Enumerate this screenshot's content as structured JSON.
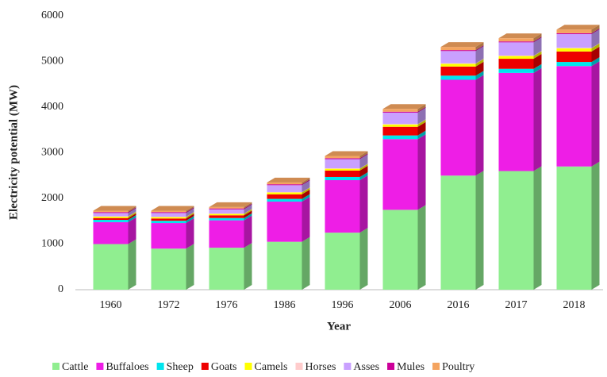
{
  "chart_data": {
    "type": "stacked-bar-3d",
    "y_label": "Electricity potential (MW)",
    "x_label": "Year",
    "categories": [
      "1960",
      "1972",
      "1976",
      "1986",
      "1996",
      "2006",
      "2016",
      "2017",
      "2018"
    ],
    "series": [
      {
        "name": "Cattle",
        "color": "#90ee90",
        "values": [
          1000,
          900,
          920,
          1050,
          1250,
          1750,
          2500,
          2600,
          2700
        ]
      },
      {
        "name": "Buffaloes",
        "color": "#ee1ee6",
        "values": [
          480,
          560,
          600,
          880,
          1150,
          1550,
          2100,
          2150,
          2200
        ]
      },
      {
        "name": "Sheep",
        "color": "#00e5ee",
        "values": [
          50,
          50,
          50,
          60,
          70,
          80,
          90,
          90,
          90
        ]
      },
      {
        "name": "Goats",
        "color": "#ee0000",
        "values": [
          40,
          50,
          60,
          100,
          140,
          190,
          200,
          220,
          230
        ]
      },
      {
        "name": "Camels",
        "color": "#ffff00",
        "values": [
          30,
          30,
          30,
          40,
          40,
          50,
          60,
          60,
          70
        ]
      },
      {
        "name": "Horses",
        "color": "#ffcccc",
        "values": [
          10,
          10,
          10,
          10,
          10,
          10,
          10,
          10,
          10
        ]
      },
      {
        "name": "Asses",
        "color": "#c9a0ff",
        "values": [
          70,
          80,
          90,
          150,
          200,
          250,
          270,
          290,
          300
        ]
      },
      {
        "name": "Mules",
        "color": "#cc0099",
        "values": [
          20,
          20,
          20,
          20,
          20,
          20,
          20,
          20,
          20
        ]
      },
      {
        "name": "Poultry",
        "color": "#f4a460",
        "values": [
          30,
          30,
          30,
          40,
          50,
          60,
          70,
          70,
          80
        ]
      }
    ],
    "ylim": [
      0,
      6000
    ],
    "yticks": [
      0,
      1000,
      2000,
      3000,
      4000,
      5000,
      6000
    ],
    "legend": "bottom"
  }
}
